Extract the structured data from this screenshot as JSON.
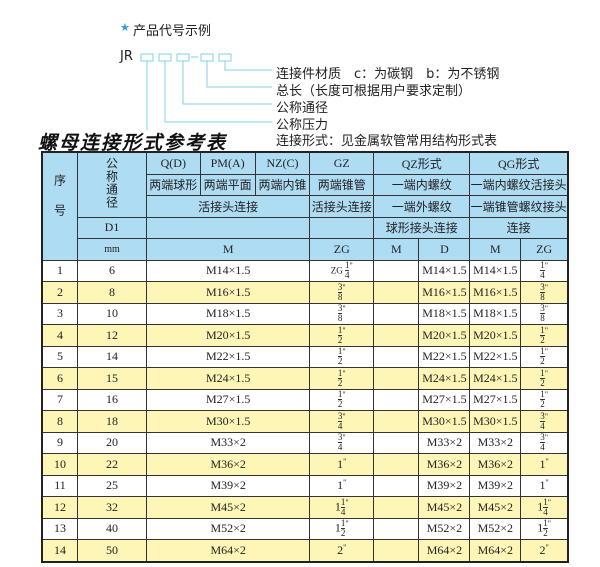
{
  "example": {
    "heading": "产品代号示例",
    "star_icon": "star",
    "code_prefix": "JR",
    "labels": [
      "连接件材质　c：为碳钢　b：为不锈钢",
      "总长（长度可根据用户要求定制）",
      "公称通径",
      "公称压力",
      "连接形式：见金属软管常用结构形式表"
    ],
    "line_color": "#7fd0e6"
  },
  "table_title": "螺母连接形式参考表",
  "colors": {
    "header": "#aedcf2",
    "alt_row": "#fdf6b6"
  },
  "header": {
    "seq": "序号",
    "dn": "公称通径",
    "d1": "D1",
    "mm": "mm",
    "q": "Q(D)",
    "pm": "PM(A)",
    "nz": "NZ(C)",
    "gz": "GZ",
    "qz": "QZ形式",
    "qg": "QG形式",
    "q_desc": "两端球形",
    "pm_desc": "两端平面",
    "nz_desc": "两端内锥",
    "gz_desc": "两端锥管",
    "qz_desc": "一端内螺纹",
    "qg_desc": "一端内螺纹活接头",
    "group_conn": "活接头连接",
    "gz_conn": "活接头连接",
    "qz_conn": "一端外螺纹",
    "qg_conn": "一端锥管螺纹接头",
    "qz_conn2": "球形接头连接",
    "qg_conn2": "连接",
    "m": "M",
    "zg": "ZG",
    "qz_m": "M",
    "qz_d": "D",
    "qg_m": "M",
    "qg_zg": "ZG"
  },
  "rows": [
    {
      "no": "1",
      "dn": "6",
      "m": "M14×1.5",
      "zg_pre": "ZG ",
      "zg_whole": "",
      "zg_num": "1",
      "zg_den": "4",
      "qz_m": "",
      "qz_d": "M14×1.5",
      "qg_m": "M14×1.5",
      "qg_whole": "",
      "qg_num": "1",
      "qg_den": "4"
    },
    {
      "no": "2",
      "dn": "8",
      "m": "M16×1.5",
      "zg_whole": "",
      "zg_num": "3",
      "zg_den": "8",
      "qz_m": "",
      "qz_d": "M16×1.5",
      "qg_m": "M16×1.5",
      "qg_whole": "",
      "qg_num": "3",
      "qg_den": "8"
    },
    {
      "no": "3",
      "dn": "10",
      "m": "M18×1.5",
      "zg_whole": "",
      "zg_num": "3",
      "zg_den": "8",
      "qz_m": "",
      "qz_d": "M18×1.5",
      "qg_m": "M18×1.5",
      "qg_whole": "",
      "qg_num": "3",
      "qg_den": "8"
    },
    {
      "no": "4",
      "dn": "12",
      "m": "M20×1.5",
      "zg_whole": "",
      "zg_num": "1",
      "zg_den": "2",
      "qz_m": "",
      "qz_d": "M20×1.5",
      "qg_m": "M20×1.5",
      "qg_whole": "",
      "qg_num": "1",
      "qg_den": "2"
    },
    {
      "no": "5",
      "dn": "14",
      "m": "M22×1.5",
      "zg_whole": "",
      "zg_num": "1",
      "zg_den": "2",
      "qz_m": "",
      "qz_d": "M22×1.5",
      "qg_m": "M22×1.5",
      "qg_whole": "",
      "qg_num": "1",
      "qg_den": "2"
    },
    {
      "no": "6",
      "dn": "15",
      "m": "M24×1.5",
      "zg_whole": "",
      "zg_num": "1",
      "zg_den": "2",
      "qz_m": "",
      "qz_d": "M24×1.5",
      "qg_m": "M24×1.5",
      "qg_whole": "",
      "qg_num": "1",
      "qg_den": "2"
    },
    {
      "no": "7",
      "dn": "16",
      "m": "M27×1.5",
      "zg_whole": "",
      "zg_num": "1",
      "zg_den": "2",
      "qz_m": "",
      "qz_d": "M27×1.5",
      "qg_m": "M27×1.5",
      "qg_whole": "",
      "qg_num": "1",
      "qg_den": "2"
    },
    {
      "no": "8",
      "dn": "18",
      "m": "M30×1.5",
      "zg_whole": "",
      "zg_num": "3",
      "zg_den": "4",
      "qz_m": "",
      "qz_d": "M30×1.5",
      "qg_m": "M30×1.5",
      "qg_whole": "",
      "qg_num": "3",
      "qg_den": "4"
    },
    {
      "no": "9",
      "dn": "20",
      "m": "M33×2",
      "zg_whole": "",
      "zg_num": "3",
      "zg_den": "4",
      "qz_m": "",
      "qz_d": "M33×2",
      "qg_m": "M33×2",
      "qg_whole": "",
      "qg_num": "3",
      "qg_den": "4"
    },
    {
      "no": "10",
      "dn": "22",
      "m": "M36×2",
      "zg_whole": "1",
      "zg_num": "",
      "zg_den": "",
      "qz_m": "",
      "qz_d": "M36×2",
      "qg_m": "M36×2",
      "qg_whole": "1",
      "qg_num": "",
      "qg_den": ""
    },
    {
      "no": "11",
      "dn": "25",
      "m": "M39×2",
      "zg_whole": "1",
      "zg_num": "",
      "zg_den": "",
      "qz_m": "",
      "qz_d": "M39×2",
      "qg_m": "M39×2",
      "qg_whole": "1",
      "qg_num": "",
      "qg_den": ""
    },
    {
      "no": "12",
      "dn": "32",
      "m": "M45×2",
      "zg_whole": "1",
      "zg_num": "1",
      "zg_den": "4",
      "qz_m": "",
      "qz_d": "M45×2",
      "qg_m": "M45×2",
      "qg_whole": "1",
      "qg_num": "1",
      "qg_den": "4"
    },
    {
      "no": "13",
      "dn": "40",
      "m": "M52×2",
      "zg_whole": "1",
      "zg_num": "1",
      "zg_den": "2",
      "qz_m": "",
      "qz_d": "M52×2",
      "qg_m": "M52×2",
      "qg_whole": "1",
      "qg_num": "1",
      "qg_den": "2"
    },
    {
      "no": "14",
      "dn": "50",
      "m": "M64×2",
      "zg_whole": "2",
      "zg_num": "",
      "zg_den": "",
      "qz_m": "",
      "qz_d": "M64×2",
      "qg_m": "M64×2",
      "qg_whole": "2",
      "qg_num": "",
      "qg_den": ""
    }
  ]
}
